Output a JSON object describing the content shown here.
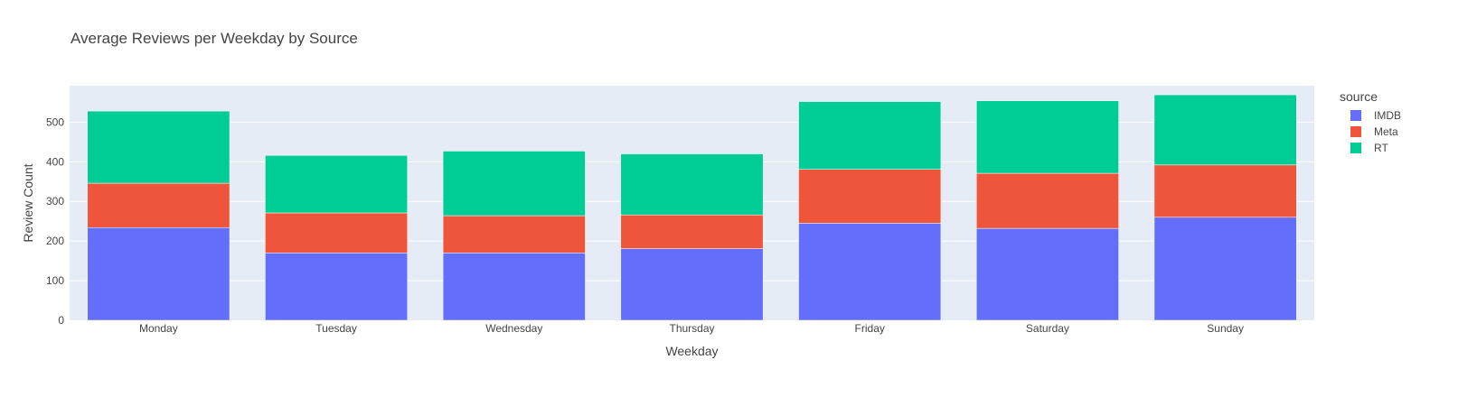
{
  "chart_data": {
    "type": "bar",
    "stacked": true,
    "title": "Average Reviews per Weekday by Source",
    "xlabel": "Weekday",
    "ylabel": "Review Count",
    "categories": [
      "Monday",
      "Tuesday",
      "Wednesday",
      "Thursday",
      "Friday",
      "Saturday",
      "Sunday"
    ],
    "series": [
      {
        "name": "IMDB",
        "color": "#636efa",
        "values": [
          234,
          170,
          170,
          181,
          245,
          232,
          260
        ]
      },
      {
        "name": "Meta",
        "color": "#ef553b",
        "values": [
          112,
          101,
          94,
          85,
          136,
          139,
          132
        ]
      },
      {
        "name": "RT",
        "color": "#00cc96",
        "values": [
          182,
          145,
          163,
          154,
          171,
          183,
          177
        ]
      }
    ],
    "yticks": [
      0,
      100,
      200,
      300,
      400,
      500
    ],
    "ylim": [
      0,
      592
    ],
    "grid": true,
    "legend_title": "source",
    "legend_position": "right"
  }
}
